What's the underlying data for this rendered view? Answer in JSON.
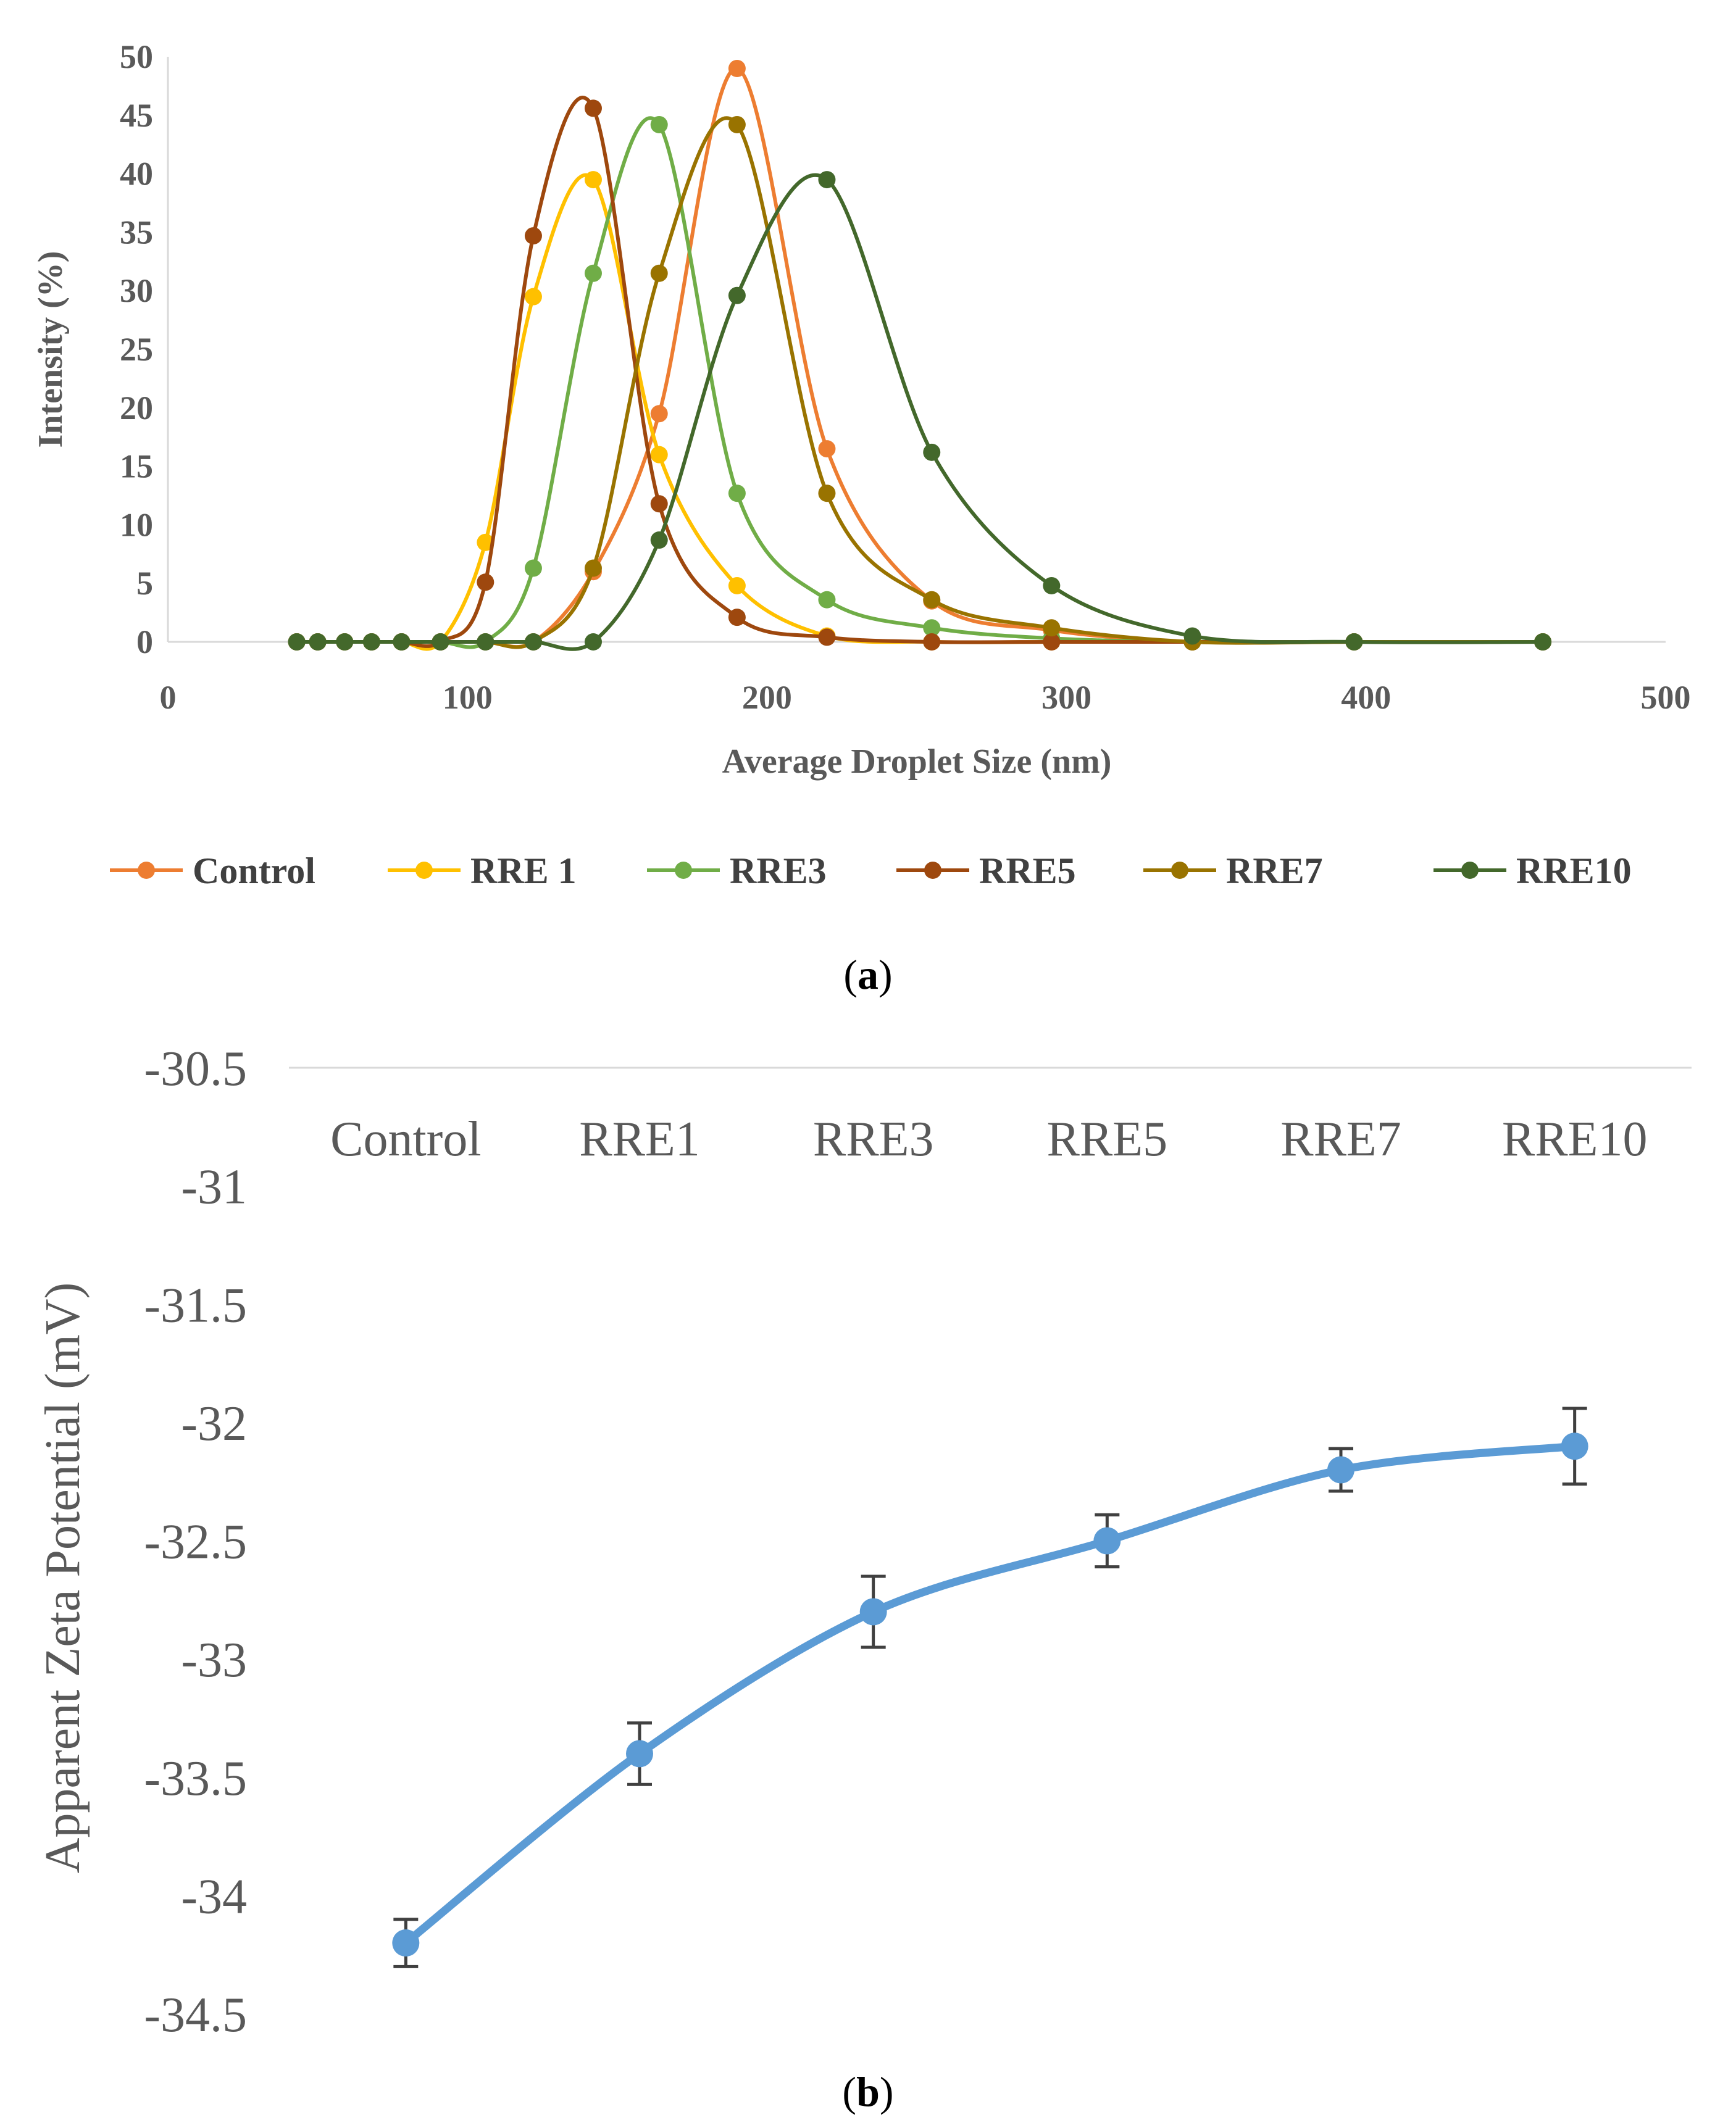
{
  "chart_data": [
    {
      "type": "line",
      "panel_label": "a",
      "xlabel": "Average Droplet Size (nm)",
      "ylabel": "Intensity (%)",
      "xlim": [
        0,
        500
      ],
      "ylim": [
        0,
        50
      ],
      "xticks": [
        "0",
        "100",
        "200",
        "300",
        "400",
        "500"
      ],
      "yticks": [
        "0",
        "5",
        "10",
        "15",
        "20",
        "25",
        "30",
        "35",
        "40",
        "45",
        "50"
      ],
      "legend_position": "bottom",
      "series": [
        {
          "name": "Control",
          "color": "#ed7d31",
          "x": [
            43,
            50,
            59,
            68,
            78,
            91,
            106,
            122,
            142,
            164,
            190,
            220,
            255,
            295,
            342,
            396,
            459
          ],
          "y": [
            0,
            0,
            0,
            0,
            0,
            0,
            0,
            0,
            6,
            19.5,
            49,
            16.5,
            3.5,
            1,
            0,
            0,
            0
          ]
        },
        {
          "name": "RRE 1",
          "color": "#ffc000",
          "x": [
            43,
            50,
            59,
            68,
            78,
            91,
            106,
            122,
            142,
            164,
            190,
            220,
            255,
            295,
            342,
            396,
            459
          ],
          "y": [
            0,
            0,
            0,
            0,
            0,
            0,
            8.5,
            29.5,
            39.5,
            16,
            4.8,
            0.5,
            0,
            0,
            0,
            0,
            0
          ]
        },
        {
          "name": "RRE3",
          "color": "#70ad47",
          "x": [
            43,
            50,
            59,
            68,
            78,
            91,
            106,
            122,
            142,
            164,
            190,
            220,
            255,
            295,
            342,
            396,
            459
          ],
          "y": [
            0,
            0,
            0,
            0,
            0,
            0,
            0,
            6.3,
            31.5,
            44.2,
            12.7,
            3.6,
            1.2,
            0.3,
            0,
            0,
            0
          ]
        },
        {
          "name": "RRE5",
          "color": "#9e480e",
          "x": [
            43,
            50,
            59,
            68,
            78,
            91,
            106,
            122,
            142,
            164,
            190,
            220,
            255,
            295,
            342,
            396,
            459
          ],
          "y": [
            0,
            0,
            0,
            0,
            0,
            0,
            5.1,
            34.7,
            45.6,
            11.8,
            2.1,
            0.4,
            0,
            0,
            0,
            0,
            0
          ]
        },
        {
          "name": "RRE7",
          "color": "#997300",
          "x": [
            43,
            50,
            59,
            68,
            78,
            91,
            106,
            122,
            142,
            164,
            190,
            220,
            255,
            295,
            342,
            396,
            459
          ],
          "y": [
            0,
            0,
            0,
            0,
            0,
            0,
            0,
            0,
            6.3,
            31.5,
            44.2,
            12.7,
            3.6,
            1.2,
            0,
            0,
            0
          ]
        },
        {
          "name": "RRE10",
          "color": "#43682b",
          "x": [
            43,
            50,
            59,
            68,
            78,
            91,
            106,
            122,
            142,
            164,
            190,
            220,
            255,
            295,
            342,
            396,
            459
          ],
          "y": [
            0,
            0,
            0,
            0,
            0,
            0,
            0,
            0,
            0,
            8.7,
            29.6,
            39.5,
            16.2,
            4.8,
            0.5,
            0,
            0
          ]
        }
      ]
    },
    {
      "type": "line",
      "panel_label": "b",
      "xlabel": "",
      "ylabel": "Apparent Zeta Potential (mV)",
      "ylim": [
        -34.5,
        -30.5
      ],
      "yticks": [
        "-30.5",
        "-31",
        "-31.5",
        "-32",
        "-32.5",
        "-33",
        "-33.5",
        "-34",
        "-34.5"
      ],
      "categories": [
        "Control",
        "RRE1",
        "RRE3",
        "RRE5",
        "RRE7",
        "RRE10"
      ],
      "color": "#5b9bd5",
      "values": [
        -34.2,
        -33.4,
        -32.8,
        -32.5,
        -32.2,
        -32.1
      ],
      "errors": [
        0.1,
        0.13,
        0.15,
        0.11,
        0.09,
        0.16
      ]
    }
  ]
}
